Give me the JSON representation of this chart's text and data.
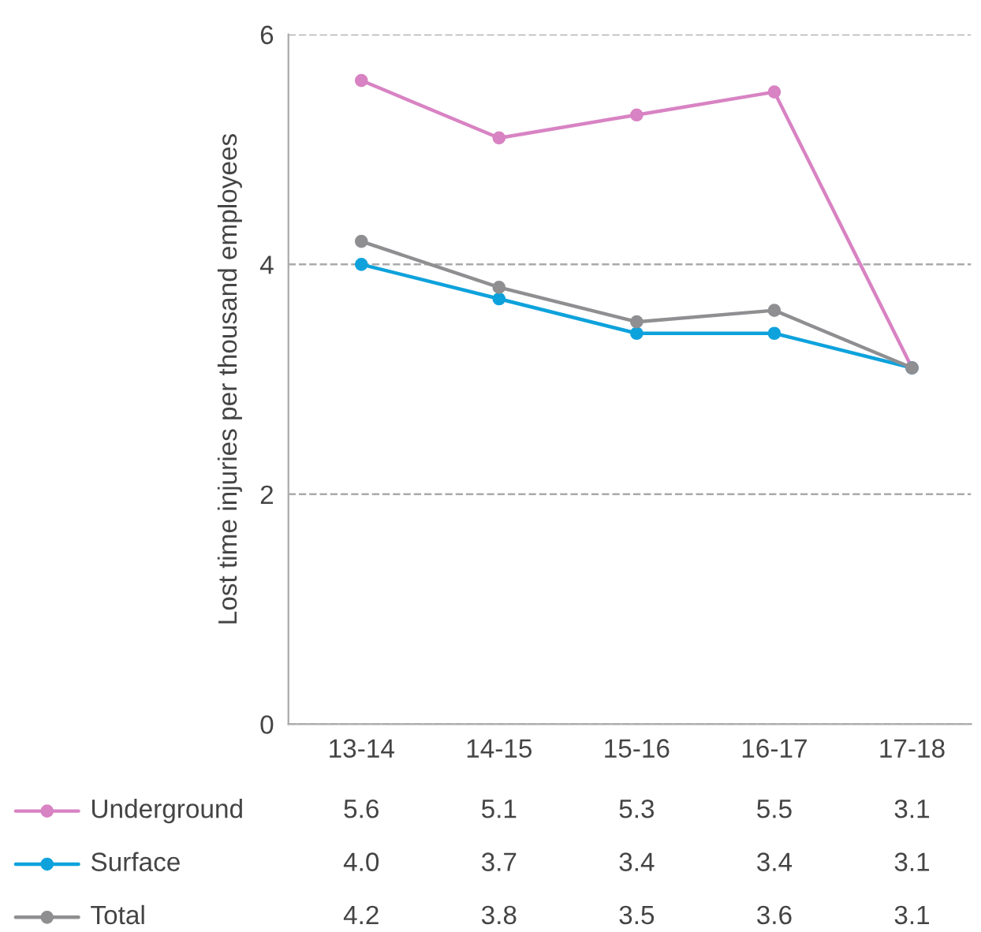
{
  "chart_data": {
    "type": "line",
    "ylabel": "Lost time injuries per thousand employees",
    "categories": [
      "13-14",
      "14-15",
      "15-16",
      "16-17",
      "17-18"
    ],
    "series": [
      {
        "name": "Underground",
        "color": "#d883c3",
        "values": [
          5.6,
          5.1,
          5.3,
          5.5,
          3.1
        ],
        "value_labels": [
          "5.6",
          "5.1",
          "5.3",
          "5.5",
          "3.1"
        ]
      },
      {
        "name": "Surface",
        "color": "#0ea2dc",
        "values": [
          4.0,
          3.7,
          3.4,
          3.4,
          3.1
        ],
        "value_labels": [
          "4.0",
          "3.7",
          "3.4",
          "3.4",
          "3.1"
        ]
      },
      {
        "name": "Total",
        "color": "#8f8f92",
        "values": [
          4.2,
          3.8,
          3.5,
          3.6,
          3.1
        ],
        "value_labels": [
          "4.2",
          "3.8",
          "3.5",
          "3.6",
          "3.1"
        ]
      }
    ],
    "ylim": [
      0,
      6
    ],
    "yticks": [
      0,
      2,
      4,
      6
    ],
    "grid": "y",
    "legend": "bottom left",
    "marker": "circle",
    "line_style": "solid"
  }
}
